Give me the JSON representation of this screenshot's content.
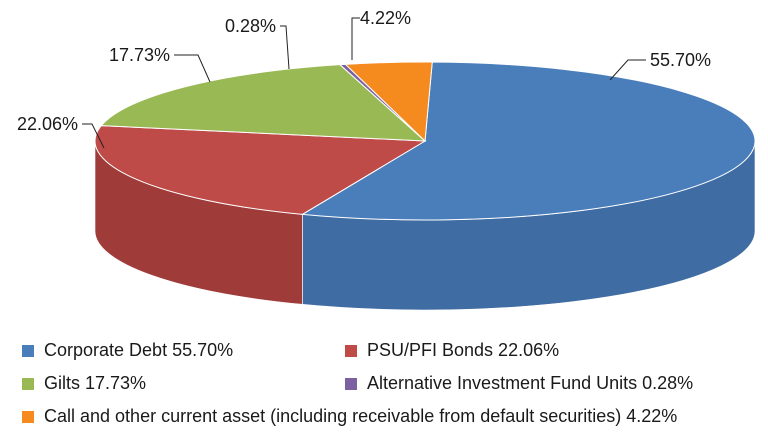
{
  "chart_data": {
    "type": "pie",
    "style": "3d",
    "categories": [
      "Corporate Debt",
      "PSU/PFI Bonds",
      "Gilts",
      "Alternative Investment Fund Units",
      "Call and other current asset (including receivable from default securities)"
    ],
    "values": [
      55.7,
      22.06,
      17.73,
      0.28,
      4.22
    ],
    "data_labels": [
      "55.70%",
      "22.06%",
      "17.73%",
      "0.28%",
      "4.22%"
    ],
    "legend_labels": [
      "Corporate Debt  55.70%",
      "PSU/PFI Bonds  22.06%",
      "Gilts 17.73%",
      "Alternative Investment Fund Units  0.28%",
      "Call and other current asset (including receivable from default securities)  4.22%"
    ],
    "colors": [
      "#4a7ebb",
      "#be4b48",
      "#98b954",
      "#7d60a0",
      "#f58a1f"
    ],
    "side_colors": [
      "#3f6ca2",
      "#9f3c39",
      "#7f9b44",
      "#664e85",
      "#cc7118"
    ],
    "legend": "bottom"
  }
}
